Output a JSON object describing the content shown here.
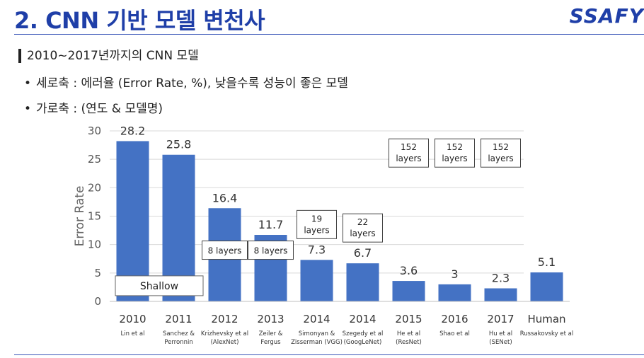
{
  "slide": {
    "title": "2. CNN 기반 모델 변천사",
    "brand": "SSAFY",
    "section_heading": "2010~2017년까지의 CNN 모델",
    "bullets": [
      "세로축 : 에러율 (Error Rate, %), 낮을수록 성능이 좋은 모델",
      "가로축 : (연도 & 모델명)"
    ]
  },
  "chart_data": {
    "type": "bar",
    "title": "",
    "xlabel": "",
    "ylabel": "Error Rate",
    "ylim": [
      0,
      30
    ],
    "yticks": [
      0,
      5,
      10,
      15,
      20,
      25,
      30
    ],
    "grid": true,
    "legend": "none",
    "bar_color": "#4472c4",
    "categories": [
      "2010",
      "2011",
      "2012",
      "2013",
      "2014",
      "2014",
      "2015",
      "2016",
      "2017",
      "Human"
    ],
    "sublabels": [
      [
        "Lin et al"
      ],
      [
        "Sanchez &",
        "Perronnin"
      ],
      [
        "Krizhevsky et al",
        "(AlexNet)"
      ],
      [
        "Zeiler &",
        "Fergus"
      ],
      [
        "Simonyan &",
        "Zisserman (VGG)"
      ],
      [
        "Szegedy et al",
        "(GoogLeNet)"
      ],
      [
        "He et al",
        "(ResNet)"
      ],
      [
        "Shao et al"
      ],
      [
        "Hu et al",
        "(SENet)"
      ],
      [
        "Russakovsky et al"
      ]
    ],
    "values": [
      28.2,
      25.8,
      16.4,
      11.7,
      7.3,
      6.7,
      3.6,
      3,
      2.3,
      5.1
    ],
    "value_labels": [
      "28.2",
      "25.8",
      "16.4",
      "11.7",
      "7.3",
      "6.7",
      "3.6",
      "3",
      "2.3",
      "5.1"
    ],
    "annotations": [
      {
        "text": [
          "Shallow"
        ],
        "span": [
          0,
          1
        ],
        "y": 3
      }
    ],
    "layer_boxes": [
      {
        "index": 2,
        "text": [
          "8 layers"
        ]
      },
      {
        "index": 3,
        "text": [
          "8 layers"
        ]
      },
      {
        "index": 4,
        "text": [
          "19",
          "layers"
        ]
      },
      {
        "index": 5,
        "text": [
          "22",
          "layers"
        ]
      },
      {
        "index": 6,
        "text": [
          "152",
          "layers"
        ]
      },
      {
        "index": 7,
        "text": [
          "152",
          "layers"
        ]
      },
      {
        "index": 8,
        "text": [
          "152",
          "layers"
        ]
      }
    ]
  }
}
